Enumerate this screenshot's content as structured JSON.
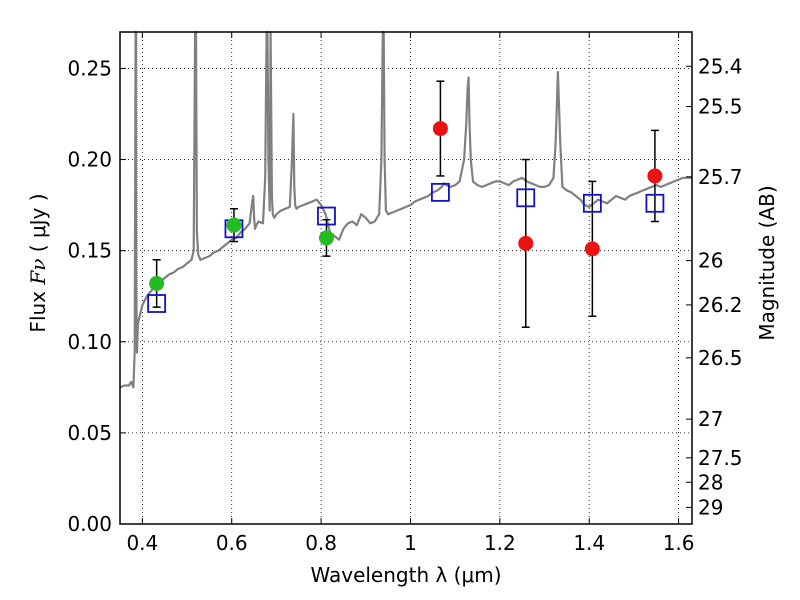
{
  "chart_data": {
    "type": "scatter",
    "xlabel": "Wavelength  λ (μm)",
    "ylabel_prefix": "Flux  ",
    "ylabel_math": "Fν",
    "ylabel_suffix": "  ( μJy )",
    "y2label": "Magnitude (AB)",
    "xlim": [
      0.35,
      1.63
    ],
    "ylim": [
      0.0,
      0.27
    ],
    "grid": true,
    "x_ticks": [
      0.4,
      0.6,
      0.8,
      1.0,
      1.2,
      1.4,
      1.6
    ],
    "x_tick_labels": [
      "0.4",
      "0.6",
      "0.8",
      "1",
      "1.2",
      "1.4",
      "1.6"
    ],
    "y_ticks": [
      0.0,
      0.05,
      0.1,
      0.15,
      0.2,
      0.25
    ],
    "y_tick_labels": [
      "0.00",
      "0.05",
      "0.10",
      "0.15",
      "0.20",
      "0.25"
    ],
    "mag_ticks": [
      25.4,
      25.5,
      25.7,
      26,
      26.2,
      26.5,
      27,
      27.5,
      28,
      29
    ],
    "mag_tick_labels": [
      "25.4",
      "25.5",
      "25.7",
      "26",
      "26.2",
      "26.5",
      "27",
      "27.5",
      "28",
      "29"
    ],
    "spectrum": {
      "color": "#808080",
      "x": [
        0.35,
        0.36,
        0.37,
        0.375,
        0.38,
        0.383,
        0.385,
        0.386,
        0.387,
        0.388,
        0.39,
        0.395,
        0.4,
        0.41,
        0.42,
        0.43,
        0.44,
        0.45,
        0.46,
        0.47,
        0.48,
        0.49,
        0.5,
        0.51,
        0.515,
        0.518,
        0.52,
        0.522,
        0.525,
        0.53,
        0.54,
        0.55,
        0.56,
        0.57,
        0.58,
        0.59,
        0.6,
        0.61,
        0.62,
        0.63,
        0.64,
        0.645,
        0.648,
        0.65,
        0.652,
        0.655,
        0.66,
        0.67,
        0.675,
        0.678,
        0.68,
        0.682,
        0.685,
        0.687,
        0.69,
        0.692,
        0.695,
        0.7,
        0.71,
        0.72,
        0.73,
        0.735,
        0.738,
        0.74,
        0.742,
        0.745,
        0.75,
        0.76,
        0.77,
        0.78,
        0.79,
        0.8,
        0.81,
        0.82,
        0.83,
        0.84,
        0.85,
        0.86,
        0.87,
        0.88,
        0.89,
        0.9,
        0.91,
        0.92,
        0.93,
        0.935,
        0.938,
        0.94,
        0.942,
        0.945,
        0.95,
        0.96,
        0.97,
        0.98,
        0.99,
        1.0,
        1.01,
        1.02,
        1.03,
        1.04,
        1.05,
        1.06,
        1.07,
        1.075,
        1.08,
        1.09,
        1.1,
        1.11,
        1.12,
        1.125,
        1.128,
        1.13,
        1.132,
        1.135,
        1.14,
        1.15,
        1.16,
        1.17,
        1.18,
        1.19,
        1.2,
        1.21,
        1.22,
        1.23,
        1.24,
        1.25,
        1.26,
        1.27,
        1.28,
        1.29,
        1.3,
        1.31,
        1.32,
        1.325,
        1.33,
        1.335,
        1.34,
        1.35,
        1.36,
        1.37,
        1.38,
        1.39,
        1.4,
        1.41,
        1.42,
        1.43,
        1.44,
        1.45,
        1.46,
        1.47,
        1.48,
        1.49,
        1.5,
        1.51,
        1.52,
        1.53,
        1.54,
        1.55,
        1.56,
        1.57,
        1.58,
        1.59,
        1.6,
        1.61,
        1.62,
        1.63
      ],
      "y": [
        0.075,
        0.076,
        0.076,
        0.078,
        0.075,
        0.095,
        0.27,
        0.27,
        0.12,
        0.094,
        0.11,
        0.115,
        0.12,
        0.125,
        0.128,
        0.131,
        0.133,
        0.135,
        0.137,
        0.138,
        0.14,
        0.141,
        0.143,
        0.145,
        0.15,
        0.27,
        0.27,
        0.16,
        0.148,
        0.145,
        0.146,
        0.147,
        0.149,
        0.15,
        0.152,
        0.154,
        0.156,
        0.157,
        0.16,
        0.162,
        0.165,
        0.175,
        0.18,
        0.168,
        0.162,
        0.164,
        0.166,
        0.165,
        0.19,
        0.27,
        0.27,
        0.2,
        0.172,
        0.27,
        0.18,
        0.17,
        0.168,
        0.17,
        0.172,
        0.173,
        0.174,
        0.2,
        0.225,
        0.185,
        0.175,
        0.173,
        0.174,
        0.175,
        0.176,
        0.177,
        0.178,
        0.175,
        0.17,
        0.16,
        0.158,
        0.156,
        0.162,
        0.165,
        0.166,
        0.164,
        0.17,
        0.168,
        0.165,
        0.166,
        0.17,
        0.2,
        0.27,
        0.27,
        0.2,
        0.172,
        0.17,
        0.171,
        0.172,
        0.173,
        0.174,
        0.175,
        0.177,
        0.178,
        0.179,
        0.18,
        0.182,
        0.183,
        0.185,
        0.187,
        0.186,
        0.185,
        0.186,
        0.188,
        0.2,
        0.22,
        0.24,
        0.245,
        0.22,
        0.2,
        0.188,
        0.186,
        0.185,
        0.186,
        0.187,
        0.188,
        0.188,
        0.187,
        0.186,
        0.188,
        0.189,
        0.19,
        0.188,
        0.187,
        0.186,
        0.185,
        0.185,
        0.186,
        0.19,
        0.21,
        0.248,
        0.21,
        0.185,
        0.183,
        0.182,
        0.18,
        0.178,
        0.175,
        0.174,
        0.176,
        0.178,
        0.177,
        0.176,
        0.178,
        0.18,
        0.179,
        0.178,
        0.18,
        0.181,
        0.182,
        0.183,
        0.184,
        0.185,
        0.186,
        0.185,
        0.186,
        0.187,
        0.188,
        0.189,
        0.19,
        0.19,
        0.19
      ]
    },
    "series": [
      {
        "marker": "circle",
        "color": "#22bb22",
        "x": [
          0.432,
          0.605,
          0.812
        ],
        "y": [
          0.132,
          0.164,
          0.157
        ],
        "yerr": [
          0.013,
          0.009,
          0.01
        ]
      },
      {
        "marker": "circle",
        "color": "#ee1111",
        "x": [
          1.067,
          1.258,
          1.407,
          1.547
        ],
        "y": [
          0.217,
          0.154,
          0.151,
          0.191
        ],
        "yerr": [
          0.026,
          0.046,
          0.037,
          0.025
        ]
      },
      {
        "marker": "open-square",
        "color": "#1111cc",
        "x": [
          0.432,
          0.605,
          0.812,
          1.067,
          1.258,
          1.407,
          1.547
        ],
        "y": [
          0.121,
          0.162,
          0.169,
          0.182,
          0.179,
          0.176,
          0.176
        ]
      }
    ]
  }
}
